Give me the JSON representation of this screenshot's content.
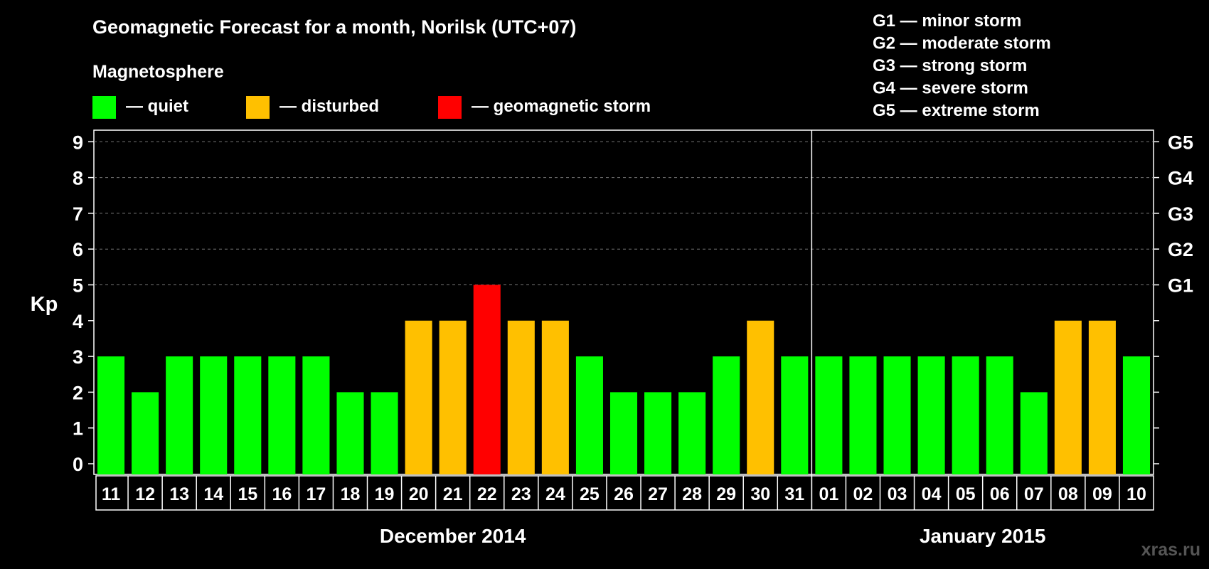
{
  "chart_data": {
    "type": "bar",
    "title": "Geomagnetic Forecast for a month, Norilsk (UTC+07)",
    "legend_title": "Magnetosphere",
    "legend": [
      {
        "label": "— quiet",
        "color": "#00ff00"
      },
      {
        "label": "— disturbed",
        "color": "#ffc000"
      },
      {
        "label": "— geomagnetic storm",
        "color": "#ff0000"
      }
    ],
    "storm_scale": [
      "G1 — minor storm",
      "G2 — moderate storm",
      "G3 — strong storm",
      "G4 — severe storm",
      "G5 — extreme storm"
    ],
    "ylabel": "Kp",
    "ylim": [
      0,
      9
    ],
    "y_ticks": [
      "0",
      "1",
      "2",
      "3",
      "4",
      "5",
      "6",
      "7",
      "8",
      "9"
    ],
    "right_ticks": [
      {
        "kp": 5,
        "label": "G1"
      },
      {
        "kp": 6,
        "label": "G2"
      },
      {
        "kp": 7,
        "label": "G3"
      },
      {
        "kp": 8,
        "label": "G4"
      },
      {
        "kp": 9,
        "label": "G5"
      }
    ],
    "categories": [
      "11",
      "12",
      "13",
      "14",
      "15",
      "16",
      "17",
      "18",
      "19",
      "20",
      "21",
      "22",
      "23",
      "24",
      "25",
      "26",
      "27",
      "28",
      "29",
      "30",
      "31",
      "01",
      "02",
      "03",
      "04",
      "05",
      "06",
      "07",
      "08",
      "09",
      "10"
    ],
    "values": [
      3,
      2,
      3,
      3,
      3,
      3,
      3,
      2,
      2,
      4,
      4,
      5,
      4,
      4,
      3,
      2,
      2,
      2,
      3,
      4,
      3,
      3,
      3,
      3,
      3,
      3,
      3,
      2,
      4,
      4,
      3
    ],
    "bar_status": [
      "quiet",
      "quiet",
      "quiet",
      "quiet",
      "quiet",
      "quiet",
      "quiet",
      "quiet",
      "quiet",
      "disturbed",
      "disturbed",
      "storm",
      "disturbed",
      "disturbed",
      "quiet",
      "quiet",
      "quiet",
      "quiet",
      "quiet",
      "disturbed",
      "quiet",
      "quiet",
      "quiet",
      "quiet",
      "quiet",
      "quiet",
      "quiet",
      "quiet",
      "disturbed",
      "disturbed",
      "quiet"
    ],
    "status_colors": {
      "quiet": "#00ff00",
      "disturbed": "#ffc000",
      "storm": "#ff0000"
    },
    "months": [
      {
        "label": "December 2014",
        "start_index": 0,
        "count": 21
      },
      {
        "label": "January 2015",
        "start_index": 21,
        "count": 10
      }
    ],
    "grid": true
  },
  "watermark": "xras.ru"
}
